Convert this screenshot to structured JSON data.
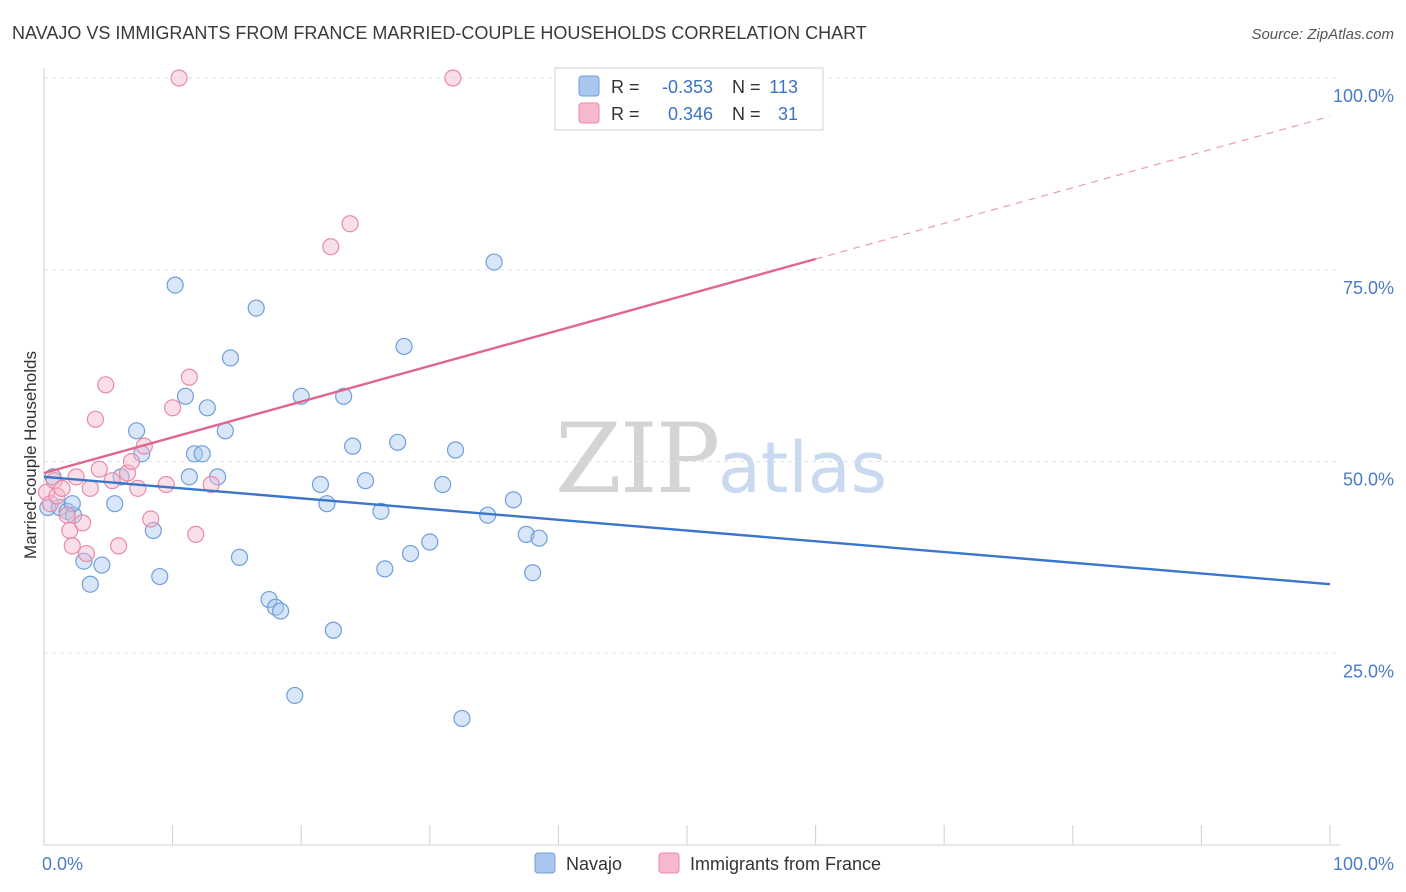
{
  "chart_data": {
    "type": "scatter",
    "title": "NAVAJO VS IMMIGRANTS FROM FRANCE MARRIED-COUPLE HOUSEHOLDS CORRELATION CHART",
    "source": "Source: ZipAtlas.com",
    "xlabel": "",
    "ylabel": "Married-couple Households",
    "xlim": [
      0,
      100
    ],
    "ylim": [
      0,
      100
    ],
    "x_tick_labels": {
      "left": "0.0%",
      "right": "100.0%"
    },
    "y_tick_labels": [
      "25.0%",
      "50.0%",
      "75.0%",
      "100.0%"
    ],
    "y_tick_values": [
      25,
      50,
      75,
      100
    ],
    "grid": true,
    "watermark": {
      "zip": "ZIP",
      "atlas": "atlas"
    },
    "stats_box": {
      "rows": [
        {
          "r_label": "R =",
          "r_value": "-0.353",
          "n_label": "N =",
          "n_value": "113"
        },
        {
          "r_label": "R =",
          "r_value": "0.346",
          "n_label": "N =",
          "n_value": "31"
        }
      ]
    },
    "series": [
      {
        "name": "Navajo",
        "color_fill": "#a9c7ee",
        "color_stroke": "#6f9fdc",
        "line_color": "#3a76cc",
        "trend": {
          "x": [
            0,
            100
          ],
          "y": [
            48.0,
            34.0
          ],
          "dashed_from": null
        },
        "points": [
          [
            0.3,
            44
          ],
          [
            0.7,
            48
          ],
          [
            1.2,
            44
          ],
          [
            1.8,
            43.5
          ],
          [
            2.3,
            43
          ],
          [
            2.2,
            44.5
          ],
          [
            3.1,
            37
          ],
          [
            3.6,
            34
          ],
          [
            4.5,
            36.5
          ],
          [
            5.5,
            44.5
          ],
          [
            6.0,
            48
          ],
          [
            7.2,
            54
          ],
          [
            7.6,
            51
          ],
          [
            8.5,
            41
          ],
          [
            9.0,
            35
          ],
          [
            10.2,
            73
          ],
          [
            11.0,
            58.5
          ],
          [
            11.3,
            48
          ],
          [
            11.7,
            51
          ],
          [
            12.3,
            51
          ],
          [
            12.7,
            57
          ],
          [
            13.5,
            48
          ],
          [
            14.1,
            54
          ],
          [
            14.5,
            63.5
          ],
          [
            15.2,
            37.5
          ],
          [
            16.5,
            70
          ],
          [
            17.5,
            32
          ],
          [
            18.0,
            31
          ],
          [
            18.4,
            30.5
          ],
          [
            19.5,
            19.5
          ],
          [
            20.0,
            58.5
          ],
          [
            21.5,
            47
          ],
          [
            22.0,
            44.5
          ],
          [
            22.5,
            28
          ],
          [
            23.3,
            58.5
          ],
          [
            24.0,
            52
          ],
          [
            25.0,
            47.5
          ],
          [
            26.2,
            43.5
          ],
          [
            26.5,
            36
          ],
          [
            27.5,
            52.5
          ],
          [
            28.0,
            65
          ],
          [
            28.5,
            38
          ],
          [
            30.0,
            39.5
          ],
          [
            31.0,
            47
          ],
          [
            32.0,
            51.5
          ],
          [
            32.5,
            16.5
          ],
          [
            34.5,
            43
          ],
          [
            35.0,
            76
          ],
          [
            36.5,
            45
          ],
          [
            37.5,
            40.5
          ],
          [
            38.0,
            35.5
          ],
          [
            38.5,
            40
          ]
        ]
      },
      {
        "name": "Immigrants from France",
        "color_fill": "#f5b9cc",
        "color_stroke": "#e98aa8",
        "line_color": "#e0668f",
        "trend": {
          "x": [
            0,
            100
          ],
          "y": [
            48.5,
            95.0
          ],
          "dashed_from": 60
        },
        "points": [
          [
            0.2,
            46
          ],
          [
            0.5,
            44.5
          ],
          [
            0.8,
            47.5
          ],
          [
            1.0,
            45.5
          ],
          [
            1.4,
            46.5
          ],
          [
            1.8,
            43
          ],
          [
            2.0,
            41
          ],
          [
            2.2,
            39
          ],
          [
            2.5,
            48
          ],
          [
            3.0,
            42
          ],
          [
            3.3,
            38
          ],
          [
            3.6,
            46.5
          ],
          [
            4.0,
            55.5
          ],
          [
            4.3,
            49
          ],
          [
            4.8,
            60
          ],
          [
            5.3,
            47.5
          ],
          [
            5.8,
            39
          ],
          [
            6.5,
            48.5
          ],
          [
            6.8,
            50
          ],
          [
            7.3,
            46.5
          ],
          [
            7.8,
            52
          ],
          [
            8.3,
            42.5
          ],
          [
            9.5,
            47
          ],
          [
            10.0,
            57
          ],
          [
            10.5,
            100
          ],
          [
            11.3,
            61
          ],
          [
            11.8,
            40.5
          ],
          [
            13.0,
            47
          ],
          [
            22.3,
            78
          ],
          [
            23.8,
            81
          ],
          [
            31.8,
            100
          ]
        ]
      }
    ]
  }
}
